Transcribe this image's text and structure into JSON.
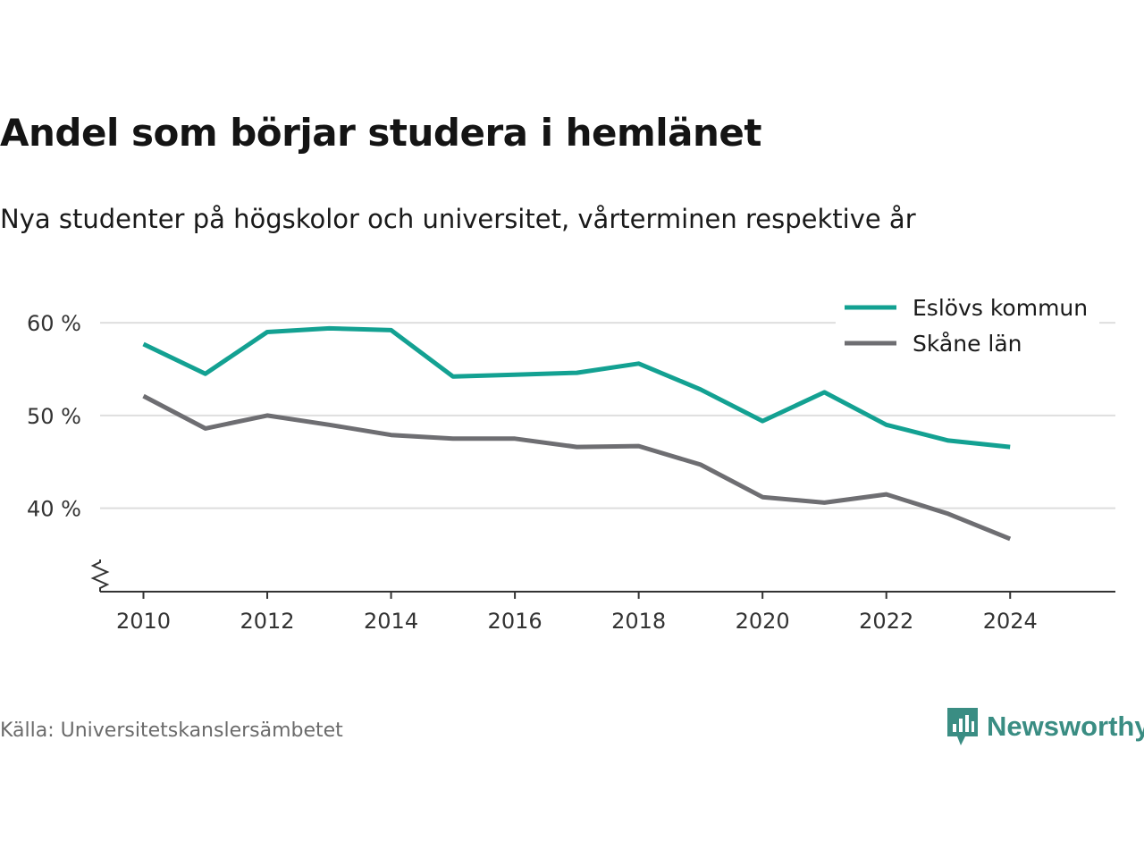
{
  "header": {
    "title": "Andel som börjar studera i hemlänet",
    "subtitle": "Nya studenter på högskolor och universitet, vårterminen respektive år"
  },
  "footer": {
    "source": "Källa: Universitetskanslersämbetet",
    "logo_text": "Newsworthy"
  },
  "colors": {
    "series_1": "#13a192",
    "series_2": "#6e6e72",
    "grid": "#dedede",
    "axis": "#333333",
    "logo": "#3a8d83"
  },
  "chart_data": {
    "type": "line",
    "x": [
      2010,
      2011,
      2012,
      2013,
      2014,
      2015,
      2016,
      2017,
      2018,
      2019,
      2020,
      2021,
      2022,
      2023,
      2024
    ],
    "x_ticks": [
      2010,
      2012,
      2014,
      2016,
      2018,
      2020,
      2022,
      2024
    ],
    "y_ticks": [
      40,
      50,
      60
    ],
    "y_tick_labels": [
      "40 %",
      "50 %",
      "60 %"
    ],
    "xlim": [
      2009.3,
      2025.7
    ],
    "ylim": [
      31,
      63
    ],
    "y_axis_break": true,
    "grid": true,
    "legend_position": "top-right",
    "series": [
      {
        "name": "Eslövs kommun",
        "color": "#13a192",
        "values": [
          57.7,
          54.5,
          59.0,
          59.4,
          59.2,
          54.2,
          54.4,
          54.6,
          55.6,
          52.8,
          49.4,
          52.5,
          49.0,
          47.3,
          46.6
        ]
      },
      {
        "name": "Skåne län",
        "color": "#6e6e72",
        "values": [
          52.1,
          48.6,
          50.0,
          49.0,
          47.9,
          47.5,
          47.5,
          46.6,
          46.7,
          44.7,
          41.2,
          40.6,
          41.5,
          39.4,
          36.7
        ]
      }
    ]
  }
}
